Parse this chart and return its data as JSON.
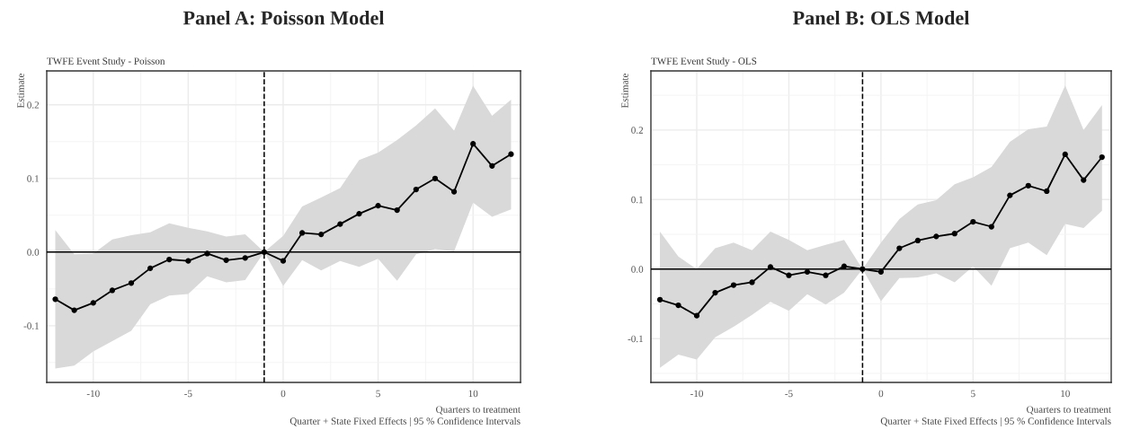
{
  "chart_data": [
    {
      "type": "line",
      "title": "Panel A: Poisson Model",
      "subtitle": "TWFE Event Study - Poisson",
      "xlabel": "Quarters to treatment",
      "ylabel": "Estimate",
      "annotations": [
        "Quarter + State Fixed Effects | 95 % Confidence Intervals"
      ],
      "x": [
        -12,
        -11,
        -10,
        -9,
        -8,
        -7,
        -6,
        -5,
        -4,
        -3,
        -2,
        -1,
        0,
        1,
        2,
        3,
        4,
        5,
        6,
        7,
        8,
        9,
        10,
        11,
        12
      ],
      "series": [
        {
          "color": "#000000",
          "values": [
            -0.064,
            -0.079,
            -0.069,
            -0.052,
            -0.042,
            -0.022,
            -0.01,
            -0.012,
            -0.002,
            -0.011,
            -0.008,
            0,
            -0.012,
            0.026,
            0.024,
            0.038,
            0.052,
            0.063,
            0.057,
            0.085,
            0.1,
            0.082,
            0.147,
            0.117,
            0.133
          ],
          "lower": [
            -0.158,
            -0.154,
            -0.135,
            -0.121,
            -0.107,
            -0.071,
            -0.059,
            -0.057,
            -0.033,
            -0.041,
            -0.038,
            0,
            -0.046,
            -0.011,
            -0.025,
            -0.012,
            -0.02,
            -0.009,
            -0.039,
            -0.003,
            0.004,
            0.001,
            0.067,
            0.048,
            0.058
          ],
          "upper": [
            0.03,
            -0.003,
            -0.002,
            0.017,
            0.023,
            0.027,
            0.039,
            0.033,
            0.028,
            0.021,
            0.024,
            0,
            0.022,
            0.062,
            0.074,
            0.087,
            0.125,
            0.135,
            0.152,
            0.172,
            0.195,
            0.165,
            0.226,
            0.185,
            0.207
          ]
        }
      ],
      "xlim": [
        -12.45,
        12.5
      ],
      "ylim": [
        -0.177,
        0.246
      ],
      "xticks": [
        -10,
        -5,
        0,
        5,
        10
      ],
      "yticks": [
        -0.1,
        {
          "value": 0,
          "label": "0.0"
        },
        0.1,
        0.2
      ],
      "ref_lines": [
        {
          "axis": "y",
          "value": 0,
          "color": "#000000",
          "line_style": "solid"
        },
        {
          "axis": "x",
          "value": -1,
          "color": "#000000",
          "line_style": "dashed"
        }
      ],
      "grid": true,
      "marker": "circle",
      "line_style": "solid",
      "legend": false
    },
    {
      "type": "line",
      "title": "Panel B: OLS Model",
      "subtitle": "TWFE Event Study - OLS",
      "xlabel": "Quarters to treatment",
      "ylabel": "Estimate",
      "annotations": [
        "Quarter + State Fixed Effects | 95 % Confidence Intervals"
      ],
      "x": [
        -12,
        -11,
        -10,
        -9,
        -8,
        -7,
        -6,
        -5,
        -4,
        -3,
        -2,
        -1,
        0,
        1,
        2,
        3,
        4,
        5,
        6,
        7,
        8,
        9,
        10,
        11,
        12
      ],
      "series": [
        {
          "color": "#000000",
          "values": [
            -0.044,
            -0.052,
            -0.067,
            -0.034,
            -0.023,
            -0.019,
            0.003,
            -0.009,
            -0.004,
            -0.009,
            0.004,
            0,
            -0.004,
            0.03,
            0.041,
            0.047,
            0.051,
            0.068,
            0.061,
            0.106,
            0.12,
            0.112,
            0.165,
            0.128,
            0.161
          ],
          "lower": [
            -0.142,
            -0.123,
            -0.13,
            -0.098,
            -0.083,
            -0.066,
            -0.047,
            -0.06,
            -0.036,
            -0.051,
            -0.034,
            0,
            -0.046,
            -0.013,
            -0.012,
            -0.006,
            -0.019,
            0.004,
            -0.024,
            0.03,
            0.038,
            0.02,
            0.065,
            0.059,
            0.084
          ],
          "upper": [
            0.054,
            0.018,
            0.0,
            0.03,
            0.038,
            0.027,
            0.054,
            0.042,
            0.027,
            0.035,
            0.042,
            0,
            0.038,
            0.072,
            0.093,
            0.099,
            0.122,
            0.132,
            0.147,
            0.183,
            0.201,
            0.205,
            0.264,
            0.2,
            0.236
          ]
        }
      ],
      "xlim": [
        -12.49,
        12.5
      ],
      "ylim": [
        -0.163,
        0.285
      ],
      "xticks": [
        -10,
        -5,
        0,
        5,
        10
      ],
      "yticks": [
        -0.1,
        {
          "value": 0,
          "label": "0.0"
        },
        0.1,
        0.2
      ],
      "ref_lines": [
        {
          "axis": "y",
          "value": 0,
          "color": "#000000",
          "line_style": "solid"
        },
        {
          "axis": "x",
          "value": -1,
          "color": "#000000",
          "line_style": "dashed"
        }
      ],
      "grid": true,
      "marker": "circle",
      "line_style": "solid",
      "legend": false
    }
  ]
}
